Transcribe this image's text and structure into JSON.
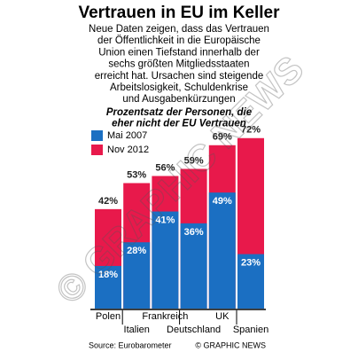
{
  "chart_data": {
    "type": "bar",
    "title": "Vertrauen in EU im Keller",
    "subtitle": [
      "Neue Daten zeigen, dass das Vertrauen",
      "der Öffentlichkeit in die Europäische",
      "Union einen Tiefstand innerhalb der",
      "sechs größten Mitgliedsstaaten",
      "erreicht hat. Ursachen sind steigende",
      "Arbeitslosigkeit, Schuldenkrise",
      "und Ausgabenkürzungen"
    ],
    "axis_label": [
      "Prozentsatz der Personen, die",
      "eher nicht der EU Vertrauen"
    ],
    "categories": [
      "Polen",
      "Italien",
      "Frankreich",
      "Deutschland",
      "UK",
      "Spanien"
    ],
    "series": [
      {
        "name": "Mai 2007",
        "color": "#1b6fc2",
        "values": [
          18,
          28,
          41,
          36,
          49,
          23
        ],
        "value_labels": [
          "18%",
          "28%",
          "41%",
          "36%",
          "49%",
          "23%"
        ]
      },
      {
        "name": "Nov 2012",
        "color": "#e8194b",
        "values": [
          42,
          53,
          56,
          59,
          69,
          72
        ],
        "value_labels": [
          "42%",
          "53%",
          "56%",
          "59%",
          "69%",
          "72%"
        ]
      }
    ],
    "source": "Source: Eurobarometer",
    "credit": "© GRAPHIC NEWS",
    "watermark": "© GRAPHIC NEWS"
  }
}
